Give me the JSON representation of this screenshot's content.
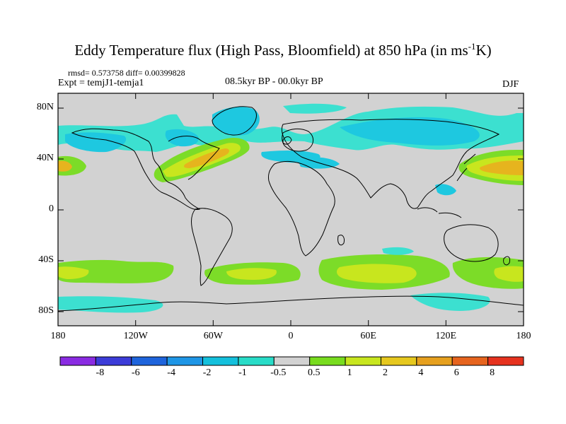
{
  "title": "Eddy Temperature flux (High Pass, Bloomfield) at 850 hPa (in ms",
  "title_sup": "-1",
  "title_end": "K)",
  "stats": "rmsd= 0.573758 diff= 0.00399828",
  "experiment": "Expt = temjJ1-temja1",
  "period": "08.5kyr BP - 00.0kyr BP",
  "season": "DJF",
  "lat_labels": [
    "80N",
    "40N",
    "0",
    "40S",
    "80S"
  ],
  "lon_labels": [
    "180",
    "120W",
    "60W",
    "0",
    "60E",
    "120E",
    "180"
  ],
  "colorbar": {
    "labels": [
      "-8",
      "-6",
      "-4",
      "-2",
      "-1",
      "-0.5",
      "0.5",
      "1",
      "2",
      "4",
      "6",
      "8"
    ],
    "colors": [
      "#8a2be2",
      "#3c3cd8",
      "#1e64dc",
      "#1e96e6",
      "#14c0dc",
      "#28dcc8",
      "#d2d2d2",
      "#78dc1e",
      "#c8e61e",
      "#e6c81e",
      "#e6a01e",
      "#e6641e",
      "#e6321e"
    ]
  },
  "map_colors": {
    "background": "#d2d2d2",
    "cyan_light": "#3ce0d0",
    "cyan": "#1ec8e0",
    "blue": "#1ea0e8",
    "green": "#7cdc28",
    "yellow_green": "#c8e61e",
    "orange": "#e6b41e"
  }
}
